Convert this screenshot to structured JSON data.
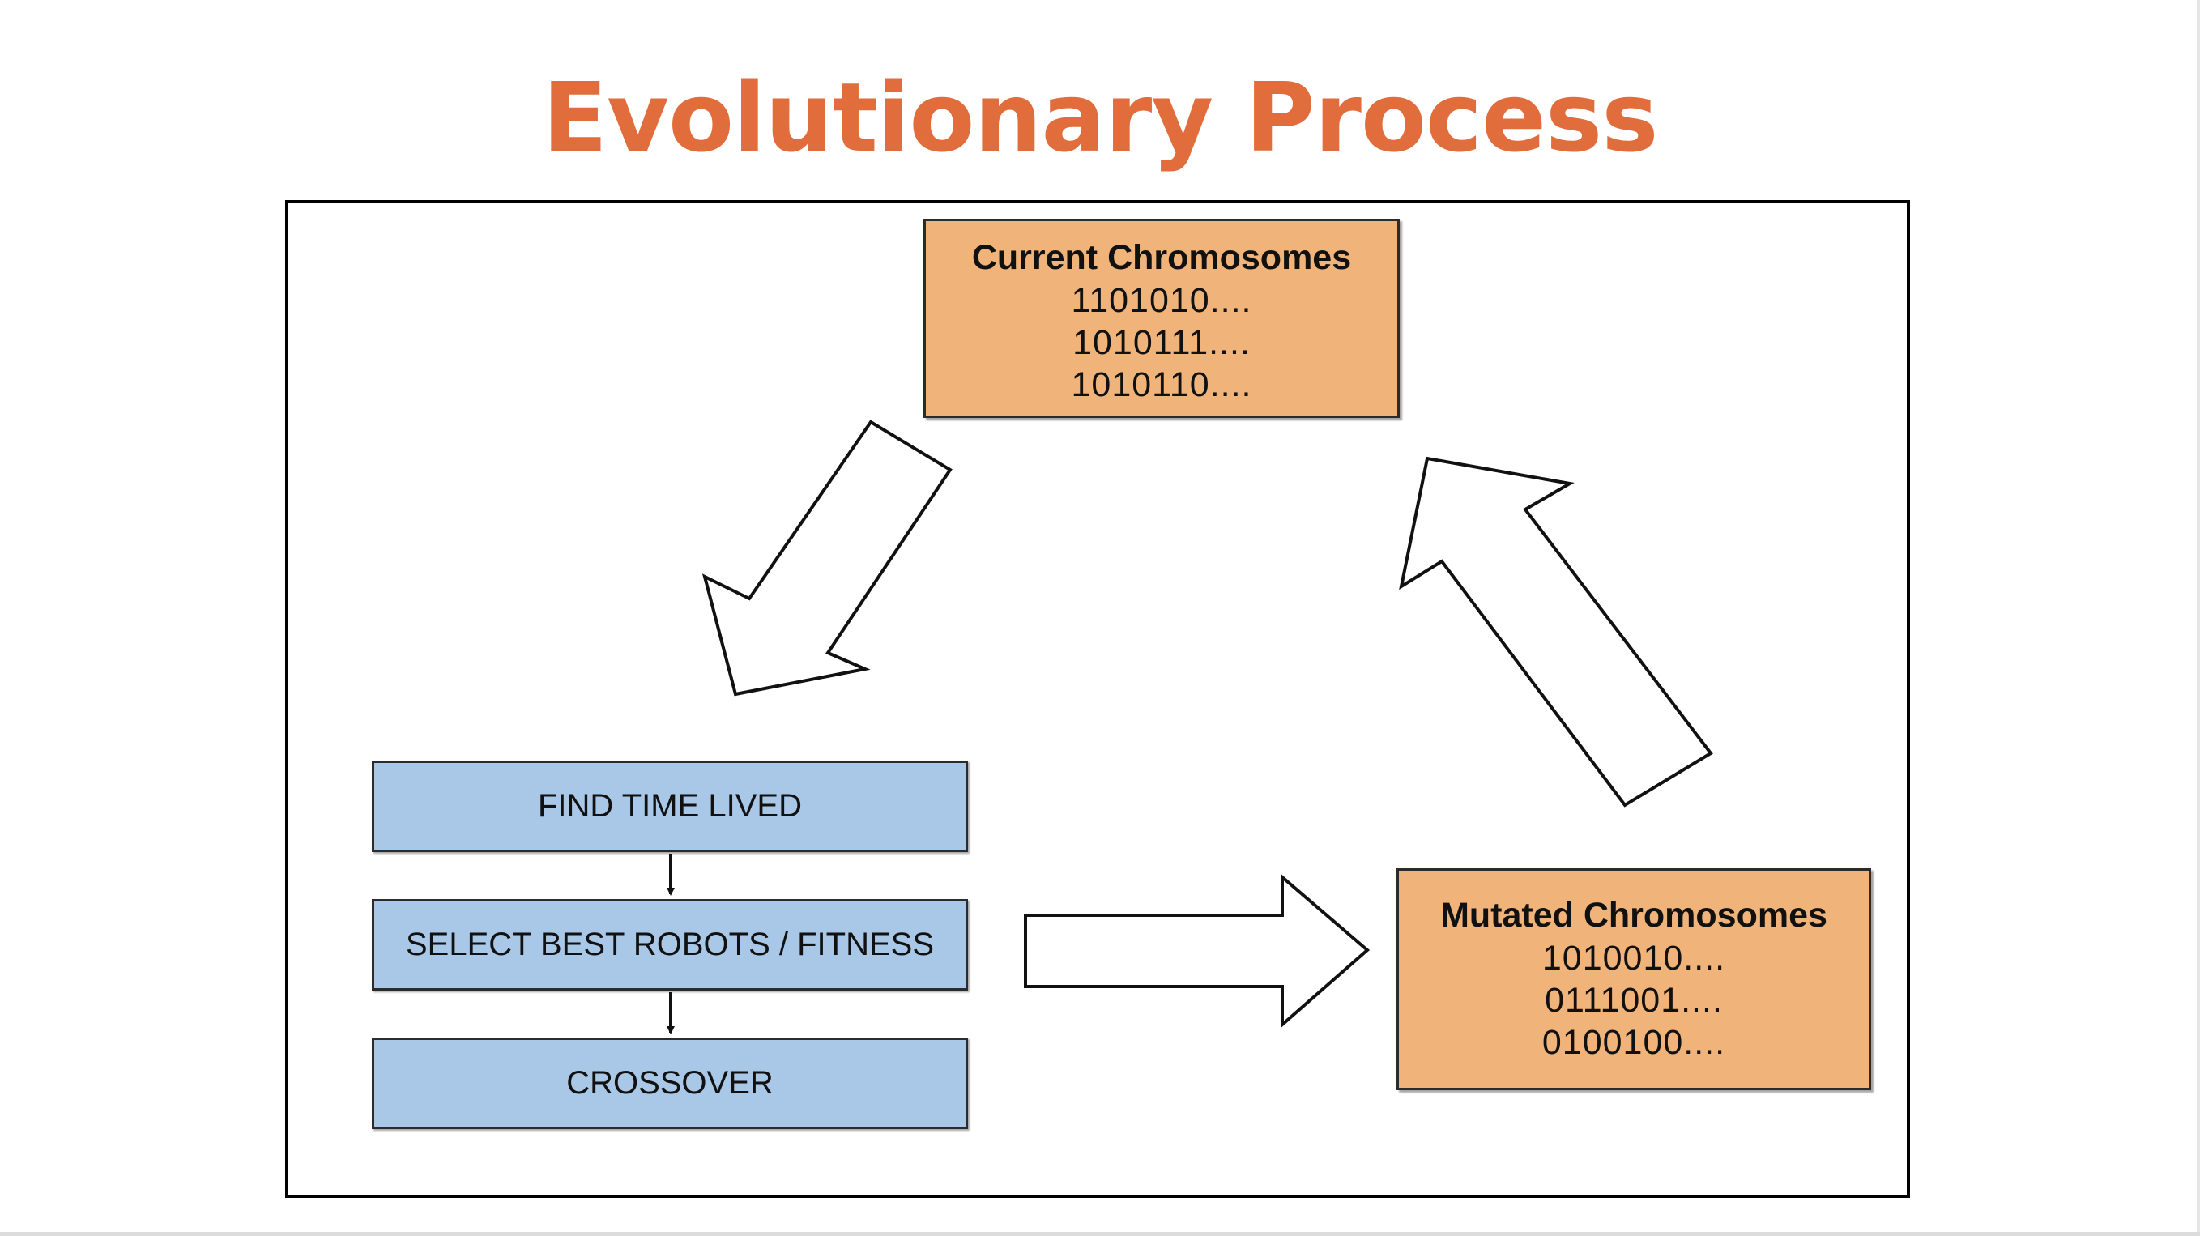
{
  "slide": {
    "title": "Evolutionary Process"
  },
  "diagram": {
    "current": {
      "title": "Current Chromosomes",
      "lines": [
        "1101010....",
        "1010111....",
        "1010110...."
      ]
    },
    "mutated": {
      "title": "Mutated Chromosomes",
      "lines": [
        "1010010....",
        "0111001....",
        "0100100...."
      ]
    },
    "steps": [
      "FIND TIME LIVED",
      "SELECT BEST ROBOTS / FITNESS",
      "CROSSOVER"
    ]
  },
  "colors": {
    "title": "#e26d3c",
    "chromosome_box": "#f0b47a",
    "step_box": "#a9c7e7"
  }
}
